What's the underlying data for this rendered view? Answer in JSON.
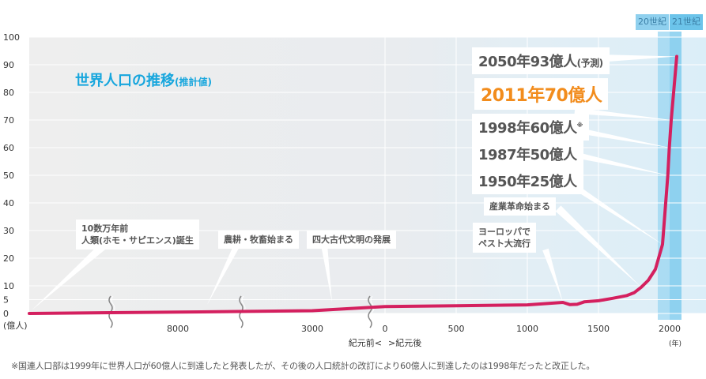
{
  "chart_data": {
    "type": "line",
    "title": "世界人口の推移",
    "subtitle": "(推計値)",
    "ylabel": "(億人)",
    "xlabel_unit": "(年)",
    "ylim": [
      0,
      100
    ],
    "yticks": [
      0,
      5,
      10,
      20,
      30,
      40,
      50,
      60,
      70,
      80,
      90,
      100
    ],
    "xticks": [
      "8000",
      "3000",
      "0",
      "500",
      "1000",
      "1500",
      "2000"
    ],
    "era_labels": {
      "bc": "紀元前<",
      "ad": ">紀元後"
    },
    "century_bands": [
      "20世紀",
      "21世紀"
    ],
    "series": [
      {
        "color": "#d4205f",
        "points": [
          {
            "year": -100000,
            "pop": 0
          },
          {
            "year": -8000,
            "pop": 0.5
          },
          {
            "year": -3000,
            "pop": 1
          },
          {
            "year": 0,
            "pop": 2.5
          },
          {
            "year": 500,
            "pop": 2.8
          },
          {
            "year": 1000,
            "pop": 3.1
          },
          {
            "year": 1250,
            "pop": 4
          },
          {
            "year": 1300,
            "pop": 3.2
          },
          {
            "year": 1350,
            "pop": 3.3
          },
          {
            "year": 1400,
            "pop": 4.2
          },
          {
            "year": 1500,
            "pop": 4.6
          },
          {
            "year": 1600,
            "pop": 5.5
          },
          {
            "year": 1700,
            "pop": 6.5
          },
          {
            "year": 1750,
            "pop": 7.5
          },
          {
            "year": 1800,
            "pop": 9.5
          },
          {
            "year": 1850,
            "pop": 12
          },
          {
            "year": 1900,
            "pop": 16
          },
          {
            "year": 1950,
            "pop": 25
          },
          {
            "year": 1987,
            "pop": 50
          },
          {
            "year": 1998,
            "pop": 60
          },
          {
            "year": 2011,
            "pop": 70
          },
          {
            "year": 2050,
            "pop": 93
          }
        ]
      }
    ],
    "annotations": [
      {
        "text": "2050年93億人",
        "suffix": "(予測)"
      },
      {
        "text": "2011年70億人",
        "highlight": true
      },
      {
        "text": "1998年60億人",
        "mark": "※"
      },
      {
        "text": "1987年50億人"
      },
      {
        "text": "1950年25億人"
      },
      {
        "text": "産業革命始まる"
      },
      {
        "text": "ヨーロッパで\nペスト大流行"
      },
      {
        "text": "四大古代文明の発展"
      },
      {
        "text": "農耕・牧畜始まる"
      },
      {
        "text": "10数万年前\n人類(ホモ・サピエンス)誕生"
      }
    ],
    "footnote": "※国連人口部は1999年に世界人口が60億人に到達したと発表したが、その後の人口統計の改訂により60億人に到達したのは1998年だったと改正した。"
  }
}
